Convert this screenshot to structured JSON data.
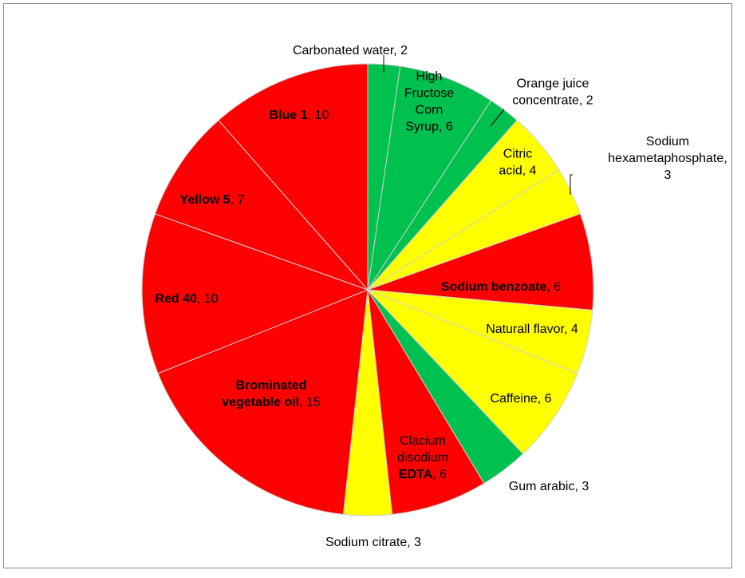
{
  "chart_data": {
    "type": "pie",
    "start_angle_deg": 0,
    "direction": "clockwise",
    "slice_border_color": "#ffffff",
    "colors": {
      "green": "#00c050",
      "yellow": "#ffff00",
      "red": "#ff0000"
    },
    "slices": [
      {
        "value": 2,
        "color": "green",
        "label_lines": [
          [
            {
              "t": "Carbonated water, 2"
            }
          ]
        ]
      },
      {
        "value": 6,
        "color": "green",
        "label_lines": [
          [
            {
              "t": "High"
            }
          ],
          [
            {
              "t": "Fructose"
            }
          ],
          [
            {
              "t": "Corn"
            }
          ],
          [
            {
              "t": "Syrup, 6"
            }
          ]
        ]
      },
      {
        "value": 2,
        "color": "green",
        "label_lines": [
          [
            {
              "t": "Orange juice"
            }
          ],
          [
            {
              "t": "concentrate, 2"
            }
          ]
        ]
      },
      {
        "value": 4,
        "color": "yellow",
        "label_lines": [
          [
            {
              "t": "Citric"
            }
          ],
          [
            {
              "t": "acid, 4"
            }
          ]
        ]
      },
      {
        "value": 3,
        "color": "yellow",
        "label_lines": [
          [
            {
              "t": "Sodium"
            }
          ],
          [
            {
              "t": "hexametaphosphate,"
            }
          ],
          [
            {
              "t": "3"
            }
          ]
        ]
      },
      {
        "value": 6,
        "color": "red",
        "label_lines": [
          [
            {
              "t": "Sodium benzoate",
              "b": true
            },
            {
              "t": ", 6"
            }
          ]
        ]
      },
      {
        "value": 4,
        "color": "yellow",
        "label_lines": [
          [
            {
              "t": "Naturall flavor, 4"
            }
          ]
        ]
      },
      {
        "value": 6,
        "color": "yellow",
        "label_lines": [
          [
            {
              "t": "Caffeine, 6"
            }
          ]
        ]
      },
      {
        "value": 3,
        "color": "green",
        "label_lines": [
          [
            {
              "t": "Gum arabic, 3"
            }
          ]
        ]
      },
      {
        "value": 6,
        "color": "red",
        "label_lines": [
          [
            {
              "t": "Clacium"
            }
          ],
          [
            {
              "t": "disodium"
            }
          ],
          [
            {
              "t": "EDTA",
              "b": true
            },
            {
              "t": ", 6"
            }
          ]
        ]
      },
      {
        "value": 3,
        "color": "yellow",
        "label_lines": [
          [
            {
              "t": "Sodium citrate, 3"
            }
          ]
        ]
      },
      {
        "value": 15,
        "color": "red",
        "label_lines": [
          [
            {
              "t": "Brominated",
              "b": true
            }
          ],
          [
            {
              "t": "vegetable oil",
              "b": true
            },
            {
              "t": ", 15"
            }
          ]
        ]
      },
      {
        "value": 10,
        "color": "red",
        "label_lines": [
          [
            {
              "t": "Red 40",
              "b": true
            },
            {
              "t": ", 10"
            }
          ]
        ]
      },
      {
        "value": 7,
        "color": "red",
        "label_lines": [
          [
            {
              "t": "Yellow 5",
              "b": true
            },
            {
              "t": ", 7"
            }
          ]
        ]
      },
      {
        "value": 10,
        "color": "red",
        "label_lines": [
          [
            {
              "t": "Blue 1",
              "b": true
            },
            {
              "t": ", 10"
            }
          ]
        ]
      }
    ]
  }
}
